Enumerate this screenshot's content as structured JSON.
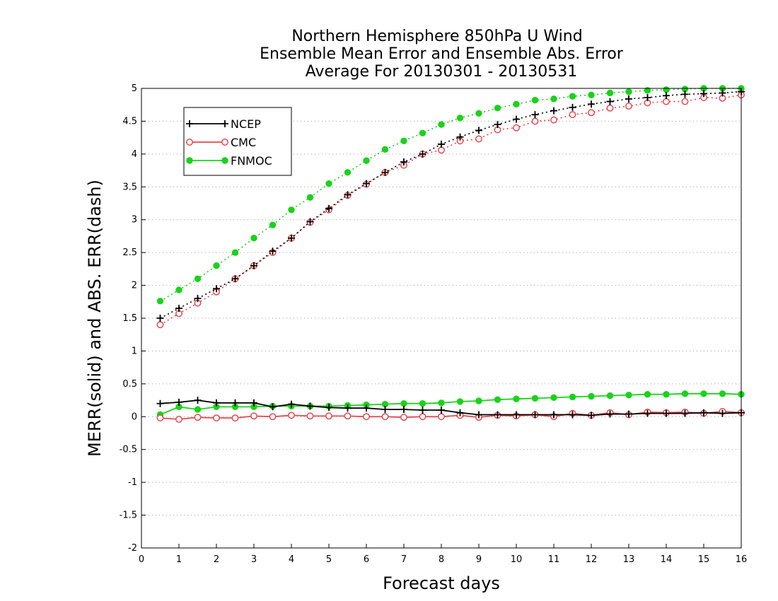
{
  "chart_data": {
    "type": "line",
    "title_lines": [
      "Northern Hemisphere 850hPa U Wind",
      "Ensemble Mean Error and Ensemble Abs. Error",
      "Average For 20130301 - 20130531"
    ],
    "xlabel": "Forecast days",
    "ylabel": "MERR(solid) and ABS. ERR(dash)",
    "xlim": [
      0,
      16
    ],
    "ylim": [
      -2,
      5
    ],
    "x_ticks": [
      "0",
      "1",
      "2",
      "3",
      "4",
      "5",
      "6",
      "7",
      "8",
      "9",
      "10",
      "11",
      "12",
      "13",
      "14",
      "15",
      "16"
    ],
    "y_ticks": [
      "-2",
      "-1.5",
      "-1",
      "-0.5",
      "0",
      "0.5",
      "1",
      "1.5",
      "2",
      "2.5",
      "3",
      "3.5",
      "4",
      "4.5",
      "5"
    ],
    "grid": "horizontal dotted",
    "legend_position": "top-left",
    "x": [
      0.5,
      1,
      1.5,
      2,
      2.5,
      3,
      3.5,
      4,
      4.5,
      5,
      5.5,
      6,
      6.5,
      7,
      7.5,
      8,
      8.5,
      9,
      9.5,
      10,
      10.5,
      11,
      11.5,
      12,
      12.5,
      13,
      13.5,
      14,
      14.5,
      15,
      15.5,
      16
    ],
    "series": [
      {
        "name": "NCEP",
        "color": "#000000",
        "marker": "plus",
        "mean_error": [
          0.2,
          0.22,
          0.25,
          0.21,
          0.21,
          0.21,
          0.15,
          0.19,
          0.16,
          0.14,
          0.13,
          0.13,
          0.11,
          0.11,
          0.1,
          0.1,
          0.06,
          0.03,
          0.03,
          0.03,
          0.03,
          0.03,
          0.03,
          0.02,
          0.04,
          0.04,
          0.05,
          0.05,
          0.05,
          0.06,
          0.05,
          0.06
        ],
        "abs_error": [
          1.5,
          1.65,
          1.8,
          1.95,
          2.1,
          2.3,
          2.52,
          2.72,
          2.97,
          3.17,
          3.38,
          3.55,
          3.72,
          3.88,
          4.0,
          4.15,
          4.26,
          4.36,
          4.45,
          4.53,
          4.6,
          4.66,
          4.71,
          4.76,
          4.8,
          4.84,
          4.86,
          4.89,
          4.91,
          4.92,
          4.93,
          4.95
        ]
      },
      {
        "name": "CMC",
        "color": "#e8484e",
        "marker": "open-circle",
        "mean_error": [
          -0.02,
          -0.04,
          -0.01,
          -0.02,
          -0.02,
          0.01,
          0.0,
          0.02,
          0.01,
          0.01,
          0.01,
          0.0,
          0.0,
          -0.01,
          0.0,
          0.0,
          0.02,
          -0.01,
          0.02,
          0.01,
          0.03,
          0.0,
          0.05,
          0.02,
          0.06,
          0.03,
          0.07,
          0.06,
          0.07,
          0.05,
          0.08,
          0.06
        ],
        "abs_error": [
          1.4,
          1.57,
          1.73,
          1.9,
          2.1,
          2.3,
          2.5,
          2.72,
          2.96,
          3.15,
          3.37,
          3.54,
          3.72,
          3.83,
          4.0,
          4.06,
          4.2,
          4.23,
          4.37,
          4.4,
          4.5,
          4.52,
          4.6,
          4.63,
          4.7,
          4.73,
          4.78,
          4.8,
          4.8,
          4.86,
          4.85,
          4.9
        ]
      },
      {
        "name": "FNMOC",
        "color": "#19d319",
        "marker": "filled-circle",
        "mean_error": [
          0.03,
          0.15,
          0.11,
          0.15,
          0.15,
          0.15,
          0.16,
          0.16,
          0.16,
          0.16,
          0.17,
          0.18,
          0.19,
          0.2,
          0.2,
          0.21,
          0.23,
          0.24,
          0.26,
          0.27,
          0.28,
          0.29,
          0.3,
          0.31,
          0.32,
          0.33,
          0.34,
          0.34,
          0.35,
          0.35,
          0.35,
          0.34
        ],
        "abs_error": [
          1.76,
          1.93,
          2.1,
          2.3,
          2.5,
          2.72,
          2.92,
          3.15,
          3.34,
          3.55,
          3.72,
          3.9,
          4.07,
          4.2,
          4.32,
          4.45,
          4.55,
          4.62,
          4.7,
          4.76,
          4.82,
          4.84,
          4.88,
          4.9,
          4.93,
          4.95,
          4.97,
          4.98,
          4.99,
          5.0,
          5.0,
          5.0
        ]
      }
    ]
  }
}
